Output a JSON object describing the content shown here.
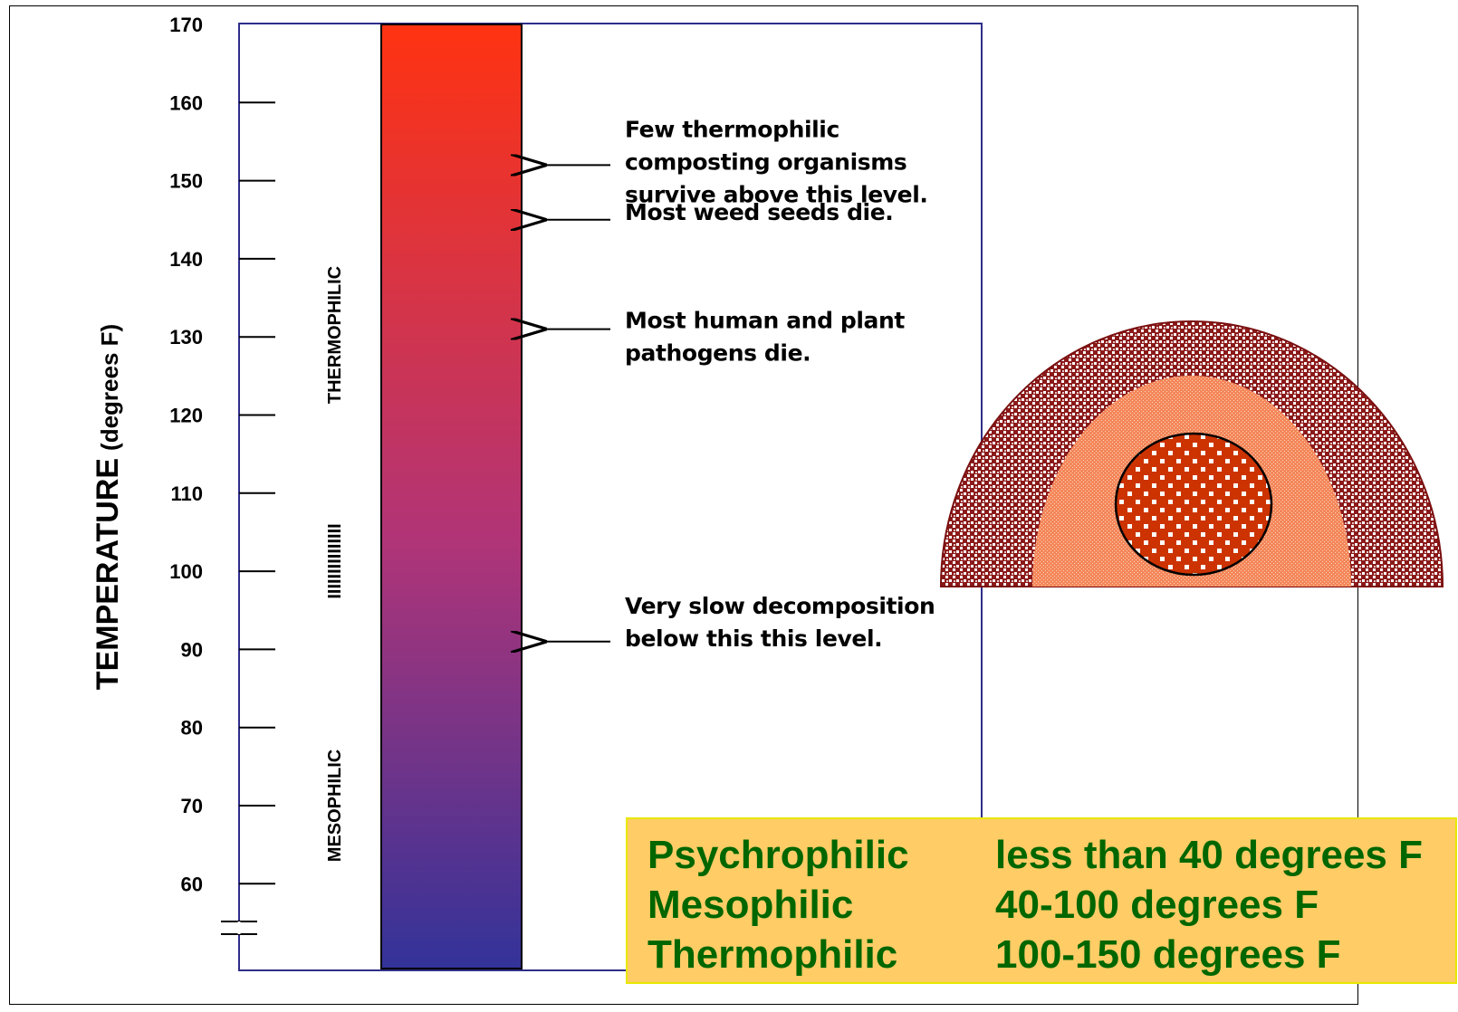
{
  "axis": {
    "title_bold": "TEMPERATURE",
    "title_normal": "(degrees F)",
    "ticks": [
      170,
      160,
      150,
      140,
      130,
      120,
      110,
      100,
      90,
      80,
      70,
      60
    ]
  },
  "zones": {
    "thermophilic": "THERMOPHILIC",
    "transition": "IIIIIIIIIIIIIII",
    "mesophilic": "MESOPHILIC"
  },
  "thermometer": {
    "colors": {
      "top": "#ff3311",
      "middle": "#b03478",
      "bottom": "#333399"
    },
    "min": 50,
    "max": 170
  },
  "annotations": [
    {
      "temp": 152,
      "lines": [
        "Few thermophilic",
        "composting organisms",
        "survive above this level."
      ]
    },
    {
      "temp": 145,
      "lines": [
        "Most weed seeds die."
      ]
    },
    {
      "temp": 131,
      "lines": [
        "Most human and plant",
        "pathogens die."
      ]
    },
    {
      "temp": 91,
      "lines": [
        "Very slow decomposition",
        "below this this level."
      ]
    }
  ],
  "legend": {
    "rows": [
      {
        "name": "Psychrophilic",
        "range": "less than 40 degrees F"
      },
      {
        "name": "Mesophilic",
        "range": "40-100 degrees F"
      },
      {
        "name": "Thermophilic",
        "range": "100-150 degrees F"
      }
    ],
    "colors": {
      "background": "#ffcc66",
      "text": "#006600",
      "border": "#e8e800"
    }
  },
  "pile": {
    "colors": {
      "outer": "#8b1a1a",
      "middle": "#f4875a",
      "core": "#cc3300"
    }
  }
}
